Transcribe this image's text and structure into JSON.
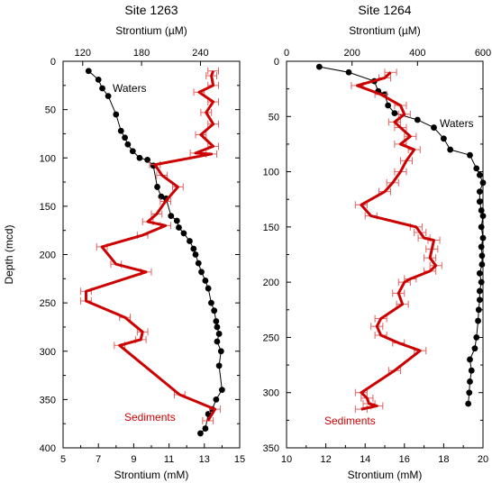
{
  "chart_data": [
    {
      "type": "line",
      "panel": "Site 1263",
      "title": "Site 1263",
      "ylabel": "Depth (mcd)",
      "ylim": [
        0,
        400
      ],
      "y_ticks": [
        "0",
        "50",
        "100",
        "150",
        "200",
        "250",
        "300",
        "350",
        "400"
      ],
      "y_inverted": true,
      "top_axis": {
        "label": "Strontium (µM)",
        "range": [
          100,
          280
        ],
        "ticks": [
          "120",
          "180",
          "240"
        ]
      },
      "bottom_axis": {
        "label": "Strontium (mM)",
        "range": [
          5,
          15
        ],
        "ticks": [
          "5",
          "7",
          "9",
          "11",
          "13",
          "15"
        ]
      },
      "series": [
        {
          "name": "Waters",
          "axis": "top",
          "color": "#000000",
          "marker": "circle",
          "points": [
            [
              126,
              10
            ],
            [
              136,
              19
            ],
            [
              140,
              28
            ],
            [
              146,
              36
            ],
            [
              154,
              55
            ],
            [
              159,
              72
            ],
            [
              163,
              79
            ],
            [
              166,
              86
            ],
            [
              171,
              93
            ],
            [
              178,
              100
            ],
            [
              186,
              102
            ],
            [
              192,
              108
            ],
            [
              196,
              130
            ],
            [
              200,
              140
            ],
            [
              205,
              142
            ],
            [
              210,
              160
            ],
            [
              216,
              165
            ],
            [
              218,
              172
            ],
            [
              223,
              178
            ],
            [
              229,
              186
            ],
            [
              233,
              194
            ],
            [
              235,
              200
            ],
            [
              238,
              209
            ],
            [
              241,
              218
            ],
            [
              245,
              227
            ],
            [
              248,
              235
            ],
            [
              251,
              250
            ],
            [
              254,
              258
            ],
            [
              256,
              269
            ],
            [
              257,
              275
            ],
            [
              259,
              282
            ],
            [
              257,
              290
            ],
            [
              261,
              300
            ],
            [
              259,
              315
            ],
            [
              262,
              340
            ],
            [
              256,
              350
            ],
            [
              252,
              360
            ],
            [
              248,
              365
            ],
            [
              245,
              380
            ],
            [
              240,
              385
            ]
          ]
        },
        {
          "name": "Sediments",
          "axis": "bottom",
          "color": "#cc0000",
          "error_bar": 0.3,
          "points": [
            [
              13.5,
              10
            ],
            [
              13.4,
              15
            ],
            [
              13.5,
              25
            ],
            [
              12.7,
              32
            ],
            [
              13.5,
              42
            ],
            [
              13.1,
              53
            ],
            [
              13.5,
              65
            ],
            [
              12.8,
              76
            ],
            [
              13.5,
              88
            ],
            [
              12.5,
              95
            ],
            [
              13.4,
              96
            ],
            [
              10.2,
              107
            ],
            [
              10.6,
              118
            ],
            [
              11.5,
              130
            ],
            [
              10.8,
              145
            ],
            [
              10.3,
              158
            ],
            [
              9.8,
              166
            ],
            [
              10.8,
              170
            ],
            [
              9.5,
              180
            ],
            [
              7.2,
              192
            ],
            [
              8.0,
              210
            ],
            [
              9.7,
              218
            ],
            [
              6.3,
              238
            ],
            [
              6.3,
              248
            ],
            [
              8.5,
              265
            ],
            [
              9.5,
              280
            ],
            [
              9.4,
              288
            ],
            [
              8.2,
              294
            ],
            [
              11.6,
              345
            ],
            [
              13.6,
              360
            ],
            [
              13.2,
              372
            ]
          ],
          "label_position": "bottom-left"
        }
      ],
      "annotations": [
        "Waters",
        "Sediments"
      ]
    },
    {
      "type": "line",
      "panel": "Site 1264",
      "title": "Site 1264",
      "ylim": [
        0,
        350
      ],
      "y_ticks": [
        "0",
        "50",
        "100",
        "150",
        "200",
        "250",
        "300",
        "350"
      ],
      "y_inverted": true,
      "top_axis": {
        "label": "Strontium (µM)",
        "range": [
          0,
          600
        ],
        "ticks": [
          "0",
          "200",
          "400",
          "600"
        ]
      },
      "bottom_axis": {
        "label": "Strontium (mM)",
        "range": [
          10,
          20
        ],
        "ticks": [
          "10",
          "12",
          "14",
          "16",
          "18",
          "20"
        ]
      },
      "series": [
        {
          "name": "Waters",
          "axis": "top",
          "color": "#000000",
          "marker": "circle",
          "points": [
            [
              100,
              5
            ],
            [
              190,
              10
            ],
            [
              268,
              18
            ],
            [
              280,
              27
            ],
            [
              300,
              30
            ],
            [
              310,
              40
            ],
            [
              330,
              47
            ],
            [
              400,
              53
            ],
            [
              450,
              60
            ],
            [
              480,
              70
            ],
            [
              500,
              80
            ],
            [
              560,
              85
            ],
            [
              580,
              97
            ],
            [
              590,
              103
            ],
            [
              600,
              110
            ],
            [
              590,
              118
            ],
            [
              590,
              127
            ],
            [
              595,
              135
            ],
            [
              600,
              140
            ],
            [
              595,
              150
            ],
            [
              600,
              160
            ],
            [
              595,
              168
            ],
            [
              597,
              176
            ],
            [
              597,
              184
            ],
            [
              590,
              192
            ],
            [
              595,
              200
            ],
            [
              590,
              208
            ],
            [
              590,
              216
            ],
            [
              587,
              225
            ],
            [
              585,
              235
            ],
            [
              580,
              250
            ],
            [
              575,
              260
            ],
            [
              560,
              270
            ],
            [
              565,
              280
            ],
            [
              560,
              290
            ],
            [
              558,
              300
            ],
            [
              555,
              310
            ]
          ]
        },
        {
          "name": "Sediments",
          "axis": "bottom",
          "color": "#cc0000",
          "error_bar": 0.3,
          "points": [
            [
              15.3,
              10
            ],
            [
              15.0,
              15
            ],
            [
              13.6,
              22
            ],
            [
              14.8,
              30
            ],
            [
              15.8,
              40
            ],
            [
              16.0,
              48
            ],
            [
              15.5,
              55
            ],
            [
              15.8,
              60
            ],
            [
              16.3,
              68
            ],
            [
              15.8,
              75
            ],
            [
              16.5,
              80
            ],
            [
              16.1,
              90
            ],
            [
              15.8,
              100
            ],
            [
              15.4,
              110
            ],
            [
              15.0,
              118
            ],
            [
              13.8,
              130
            ],
            [
              14.3,
              140
            ],
            [
              16.6,
              150
            ],
            [
              16.8,
              155
            ],
            [
              17.0,
              160
            ],
            [
              17.5,
              162
            ],
            [
              17.4,
              170
            ],
            [
              17.3,
              178
            ],
            [
              17.6,
              185
            ],
            [
              17.3,
              190
            ],
            [
              16.3,
              197
            ],
            [
              16.0,
              200
            ],
            [
              15.7,
              210
            ],
            [
              15.9,
              220
            ],
            [
              14.8,
              233
            ],
            [
              14.6,
              240
            ],
            [
              14.8,
              248
            ],
            [
              15.7,
              255
            ],
            [
              16.8,
              262
            ],
            [
              15.5,
              280
            ],
            [
              13.8,
              300
            ],
            [
              14.1,
              305
            ],
            [
              14.2,
              310
            ],
            [
              14.6,
              312
            ],
            [
              13.8,
              315
            ]
          ],
          "label_position": "bottom-left"
        }
      ],
      "annotations": [
        "Waters",
        "Sediments"
      ]
    }
  ]
}
